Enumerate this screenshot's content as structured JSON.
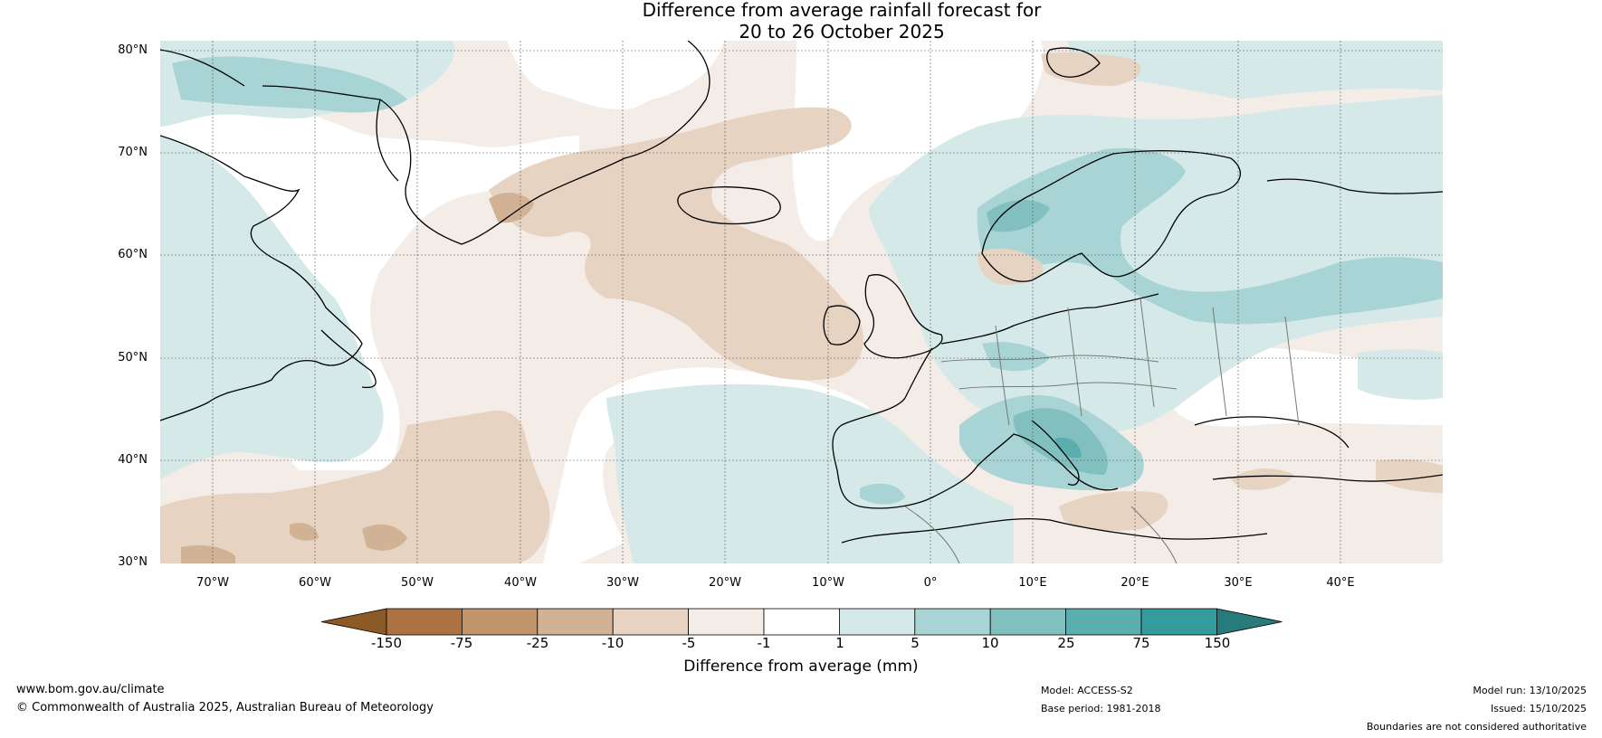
{
  "title": {
    "line1": "Difference from average rainfall forecast for",
    "line2": "20 to 26 October 2025"
  },
  "map": {
    "region": "North Atlantic and Europe",
    "lat_labels": [
      "80°N",
      "70°N",
      "60°N",
      "50°N",
      "40°N",
      "30°N"
    ],
    "lon_labels": [
      "70°W",
      "60°W",
      "50°W",
      "40°W",
      "30°W",
      "20°W",
      "10°W",
      "0°",
      "10°E",
      "20°E",
      "30°E",
      "40°E"
    ]
  },
  "colorbar": {
    "label": "Difference from average (mm)",
    "ticks": [
      "-150",
      "-75",
      "-25",
      "-10",
      "-5",
      "-1",
      "1",
      "5",
      "10",
      "25",
      "75",
      "150"
    ],
    "colors": [
      "#8c5a24",
      "#ad7242",
      "#c2946c",
      "#d2b294",
      "#e6d3c2",
      "#f4ece6",
      "#ffffff",
      "#d5e9e8",
      "#a8d4d5",
      "#82c0c0",
      "#5aaeae",
      "#349a9a",
      "#277b7b"
    ]
  },
  "footer": {
    "website": "www.bom.gov.au/climate",
    "copyright": "© Commonwealth of Australia 2025, Australian Bureau of Meteorology",
    "model": "Model: ACCESS-S2",
    "base_period": "Base period: 1981-2018",
    "model_run": "Model run: 13/10/2025",
    "issued": "Issued: 15/10/2025",
    "disclaimer": "Boundaries are not considered authoritative"
  }
}
